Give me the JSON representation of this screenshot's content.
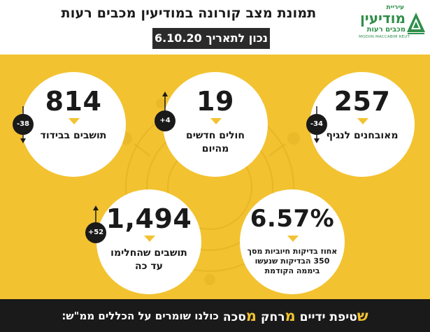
{
  "header": {
    "title": "תמונת מצב קורונה במודיעין מכבים רעות",
    "date_label": "נכון לתאריך 6.10.20"
  },
  "logo": {
    "small": "עיריית",
    "name": "מודיעין",
    "sub": "מכבים רעות",
    "english": "MODIIN MACCABIM REUT",
    "brand_color": "#2f8f4a"
  },
  "stats": [
    {
      "value": "257",
      "label": "מאובחנים לנגיף",
      "change": "-34",
      "direction": "down"
    },
    {
      "value": "19",
      "label": "חולים חדשים מהיום",
      "change": "+4",
      "direction": "up"
    },
    {
      "value": "814",
      "label": "תושבים בבידוד",
      "change": "-38",
      "direction": "down"
    },
    {
      "value": "6.57%",
      "label": "אחוז בדיקות חיוביות מסך 350 הבדיקות שנעשו ביממה הקודמת"
    },
    {
      "value": "1,494",
      "label": "תושבים שהחלימו עד כה",
      "change": "+52",
      "direction": "up"
    }
  ],
  "footer": {
    "intro": "כולנו שומרים על הכללים ממ\"ש:",
    "items": [
      {
        "letter": "מ",
        "rest": "סכה"
      },
      {
        "letter": "מ",
        "rest": "רחק"
      },
      {
        "letter": "ש",
        "rest": "טיפת ידיים"
      }
    ]
  },
  "colors": {
    "background": "#f2c230",
    "circle": "#ffffff",
    "dark": "#1a1a1a",
    "accent": "#f2c230"
  }
}
